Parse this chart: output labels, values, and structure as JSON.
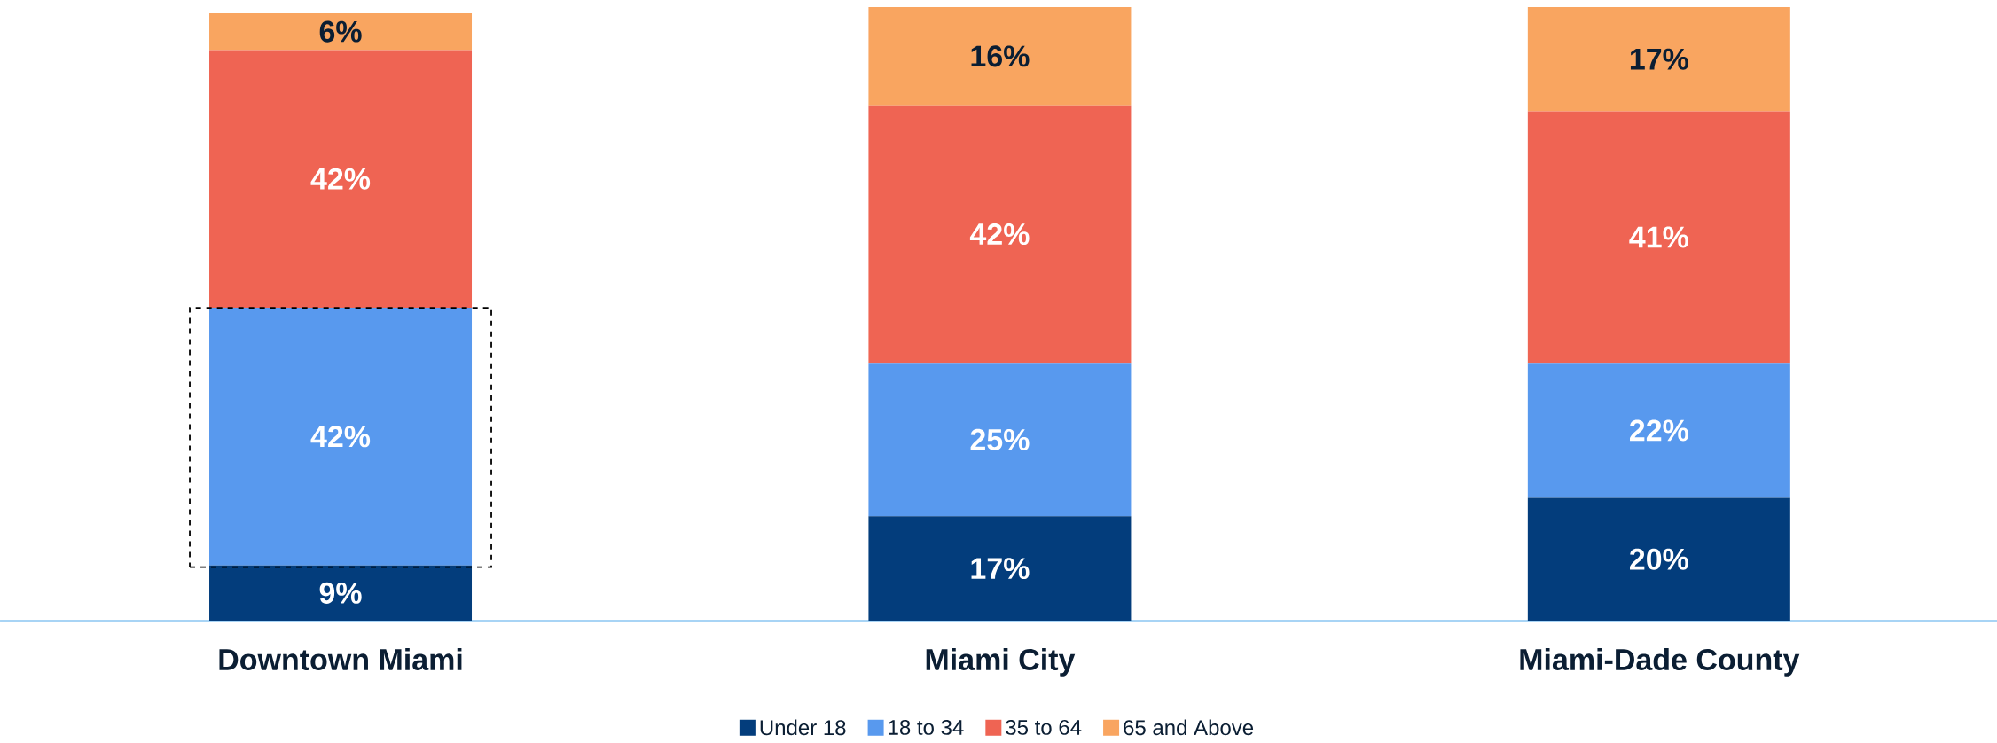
{
  "chart_data": {
    "type": "bar",
    "stacked": true,
    "categories": [
      "Downtown Miami",
      "Miami City",
      "Miami-Dade County"
    ],
    "series": [
      {
        "name": "Under 18",
        "color": "#033d7c",
        "values": [
          9,
          17,
          20
        ],
        "value_labels": [
          "9%",
          "17%",
          "20%"
        ]
      },
      {
        "name": "18 to 34",
        "color": "#5899ee",
        "values": [
          42,
          25,
          22
        ],
        "value_labels": [
          "42%",
          "25%",
          "22%"
        ]
      },
      {
        "name": "35 to 64",
        "color": "#ef6453",
        "values": [
          42,
          42,
          41
        ],
        "value_labels": [
          "42%",
          "42%",
          "41%"
        ]
      },
      {
        "name": "65 and Above",
        "color": "#f9a560",
        "values": [
          6,
          16,
          17
        ],
        "value_labels": [
          "6%",
          "16%",
          "17%"
        ]
      }
    ],
    "ylim": [
      0,
      100
    ],
    "legend": "bottom"
  }
}
